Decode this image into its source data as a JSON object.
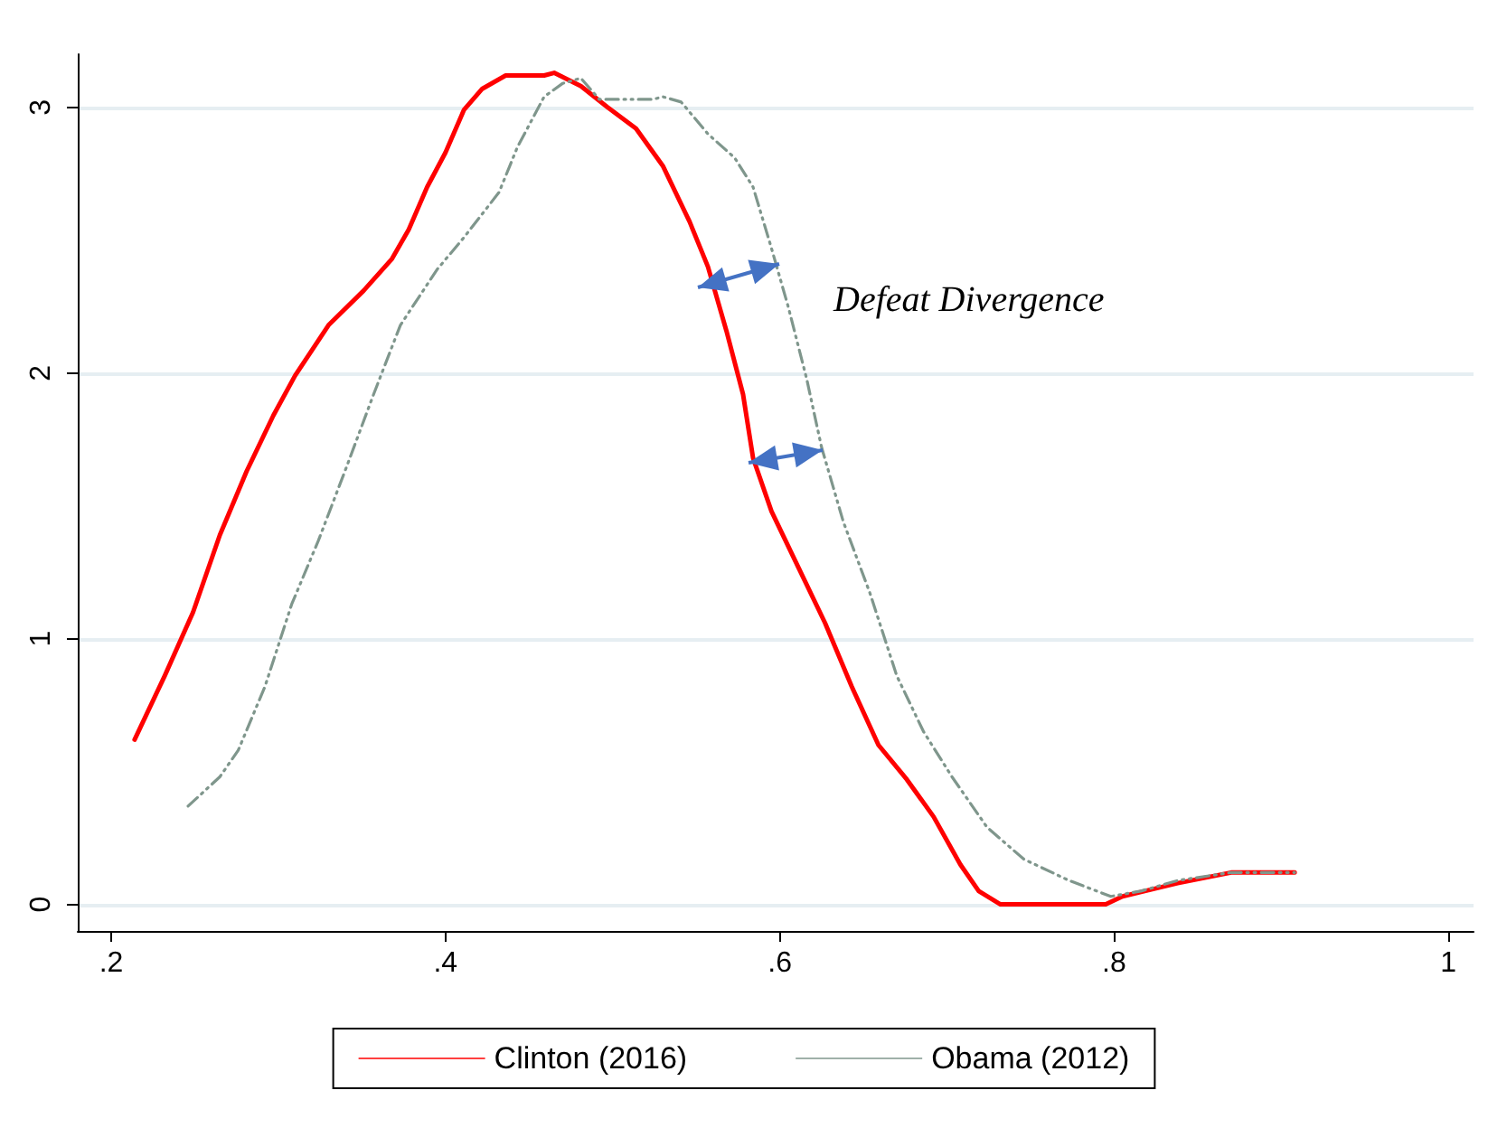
{
  "chart_data": {
    "type": "line",
    "xlim": [
      0.18,
      1.015
    ],
    "xticks": [
      {
        "value": 0.2,
        "label": ".2"
      },
      {
        "value": 0.4,
        "label": ".4"
      },
      {
        "value": 0.6,
        "label": ".6"
      },
      {
        "value": 0.8,
        "label": ".8"
      },
      1
    ],
    "ylim": [
      -0.1,
      3.2
    ],
    "yticks": [
      0,
      1,
      2,
      3
    ],
    "grid": "y",
    "legend": "bottom",
    "marker": "none",
    "annotations": [
      "Defeat Divergence"
    ],
    "series": [
      {
        "name": "Clinton (2016)",
        "color": "#ff0000",
        "line_style": "solid",
        "x": [
          0.214,
          0.232,
          0.249,
          0.265,
          0.281,
          0.297,
          0.31,
          0.33,
          0.351,
          0.368,
          0.378,
          0.389,
          0.4,
          0.411,
          0.422,
          0.436,
          0.459,
          0.465,
          0.481,
          0.497,
          0.514,
          0.53,
          0.546,
          0.557,
          0.568,
          0.578,
          0.584,
          0.595,
          0.611,
          0.627,
          0.643,
          0.659,
          0.676,
          0.692,
          0.708,
          0.719,
          0.732,
          0.795,
          0.805,
          0.838,
          0.87,
          0.908
        ],
        "values": [
          0.62,
          0.86,
          1.1,
          1.39,
          1.63,
          1.84,
          1.99,
          2.18,
          2.31,
          2.43,
          2.54,
          2.7,
          2.83,
          2.99,
          3.07,
          3.12,
          3.12,
          3.13,
          3.08,
          3.0,
          2.92,
          2.78,
          2.57,
          2.4,
          2.16,
          1.92,
          1.68,
          1.48,
          1.27,
          1.06,
          0.82,
          0.6,
          0.47,
          0.33,
          0.15,
          0.05,
          0,
          0,
          0.03,
          0.08,
          0.12,
          0.12
        ]
      },
      {
        "name": "Obama (2012)",
        "color": "#7f968c",
        "line_style": "dashed",
        "x": [
          0.246,
          0.265,
          0.276,
          0.292,
          0.308,
          0.324,
          0.341,
          0.357,
          0.373,
          0.395,
          0.411,
          0.432,
          0.443,
          0.459,
          0.47,
          0.481,
          0.492,
          0.524,
          0.53,
          0.541,
          0.557,
          0.573,
          0.584,
          0.595,
          0.605,
          0.616,
          0.625,
          0.638,
          0.654,
          0.67,
          0.686,
          0.703,
          0.724,
          0.746,
          0.773,
          0.798,
          0.816,
          0.838,
          0.87,
          0.908
        ],
        "values": [
          0.37,
          0.48,
          0.58,
          0.82,
          1.13,
          1.37,
          1.65,
          1.92,
          2.18,
          2.39,
          2.51,
          2.68,
          2.85,
          3.04,
          3.09,
          3.11,
          3.03,
          3.03,
          3.04,
          3.02,
          2.9,
          2.81,
          2.7,
          2.47,
          2.25,
          1.98,
          1.72,
          1.44,
          1.17,
          0.86,
          0.65,
          0.48,
          0.29,
          0.17,
          0.09,
          0.03,
          0.05,
          0.09,
          0.12,
          0.12
        ]
      }
    ]
  }
}
